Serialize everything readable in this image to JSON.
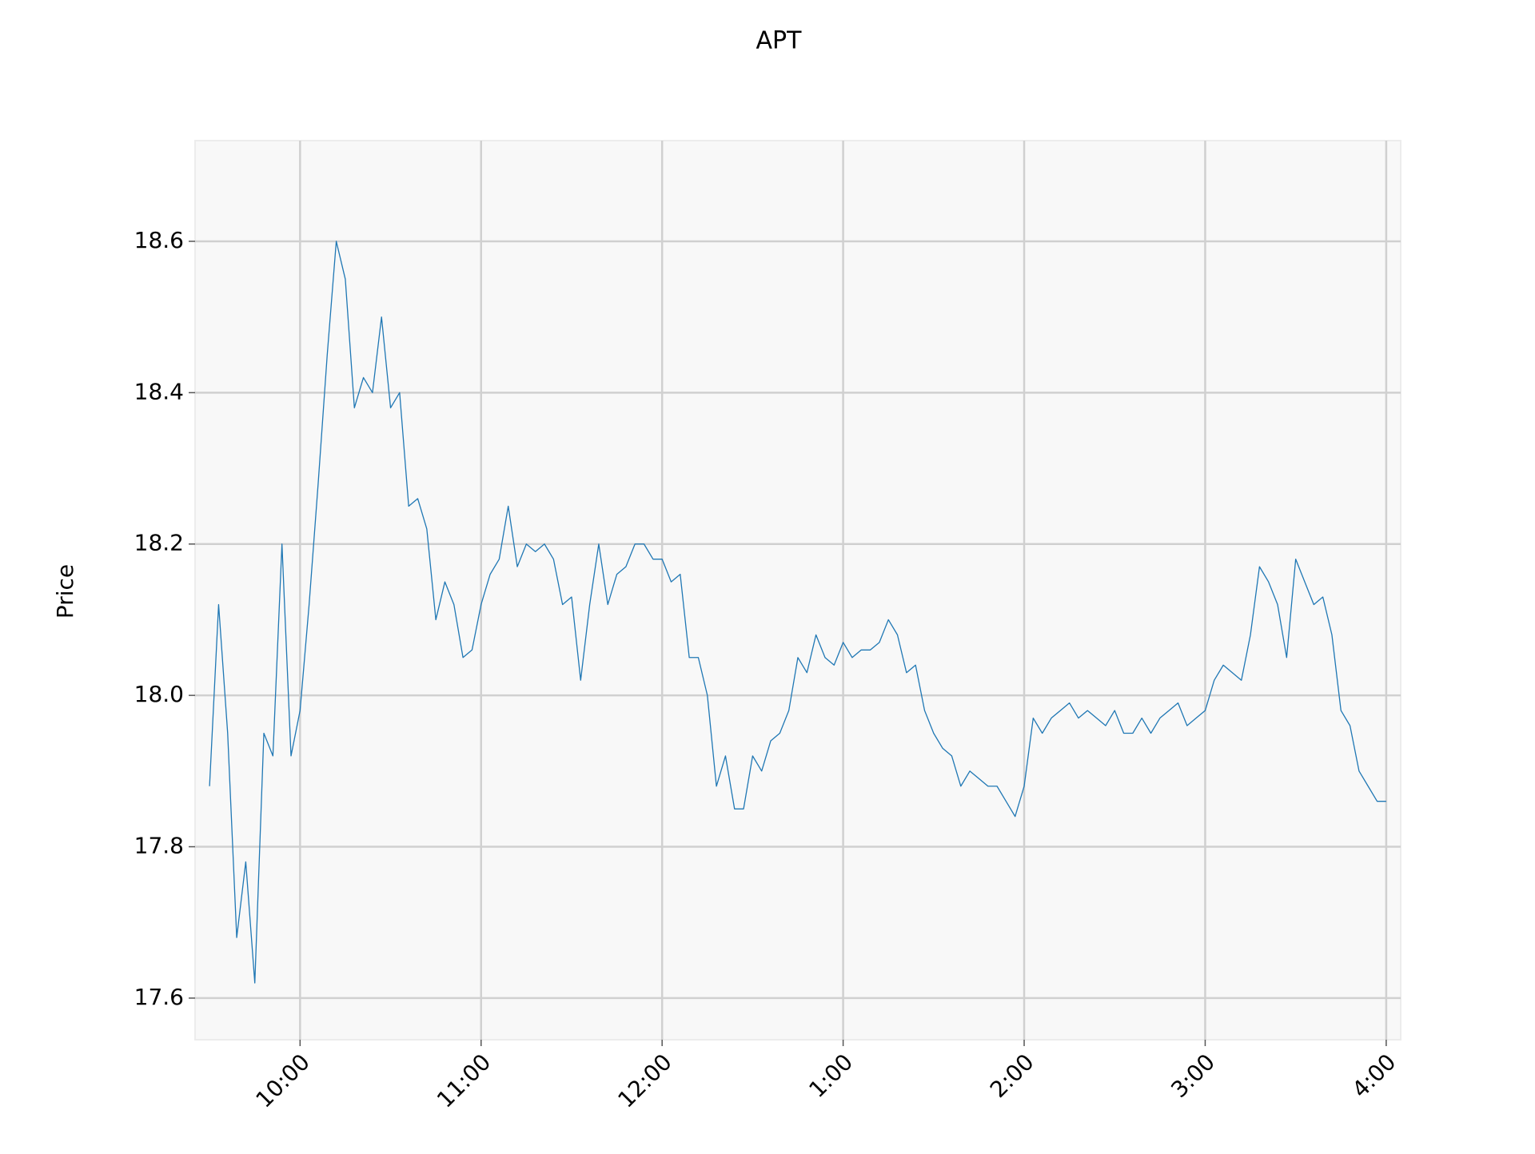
{
  "chart_data": {
    "type": "line",
    "title": "APT",
    "y_label": "Price",
    "x": [
      9.5,
      9.55,
      9.6,
      9.65,
      9.7,
      9.75,
      9.8,
      9.85,
      9.9,
      9.95,
      10,
      10.05,
      10.1,
      10.15,
      10.2,
      10.25,
      10.3,
      10.35,
      10.4,
      10.45,
      10.5,
      10.55,
      10.6,
      10.65,
      10.7,
      10.75,
      10.8,
      10.85,
      10.9,
      10.95,
      11,
      11.05,
      11.1,
      11.15,
      11.2,
      11.25,
      11.3,
      11.35,
      11.4,
      11.45,
      11.5,
      11.55,
      11.6,
      11.65,
      11.7,
      11.75,
      11.8,
      11.85,
      11.9,
      11.95,
      12,
      12.05,
      12.1,
      12.15,
      12.2,
      12.25,
      12.3,
      12.35,
      12.4,
      12.45,
      12.5,
      12.55,
      12.6,
      12.65,
      12.7,
      12.75,
      12.8,
      12.85,
      12.9,
      12.95,
      13,
      13.05,
      13.1,
      13.15,
      13.2,
      13.25,
      13.3,
      13.35,
      13.4,
      13.45,
      13.5,
      13.55,
      13.6,
      13.65,
      13.7,
      13.75,
      13.8,
      13.85,
      13.9,
      13.95,
      14,
      14.05,
      14.1,
      14.15,
      14.2,
      14.25,
      14.3,
      14.35,
      14.4,
      14.45,
      14.5,
      14.55,
      14.6,
      14.65,
      14.7,
      14.75,
      14.8,
      14.85,
      14.9,
      14.95,
      15,
      15.05,
      15.1,
      15.15,
      15.2,
      15.25,
      15.3,
      15.35,
      15.4,
      15.45,
      15.5,
      15.55,
      15.6,
      15.65,
      15.7,
      15.75,
      15.8,
      15.85,
      15.9,
      15.95,
      16
    ],
    "series": [
      {
        "color": "#1f77b4",
        "values": [
          17.88,
          18.12,
          17.95,
          17.68,
          17.78,
          17.62,
          17.95,
          17.92,
          18.2,
          17.92,
          17.98,
          18.12,
          18.28,
          18.45,
          18.6,
          18.55,
          18.38,
          18.42,
          18.4,
          18.5,
          18.38,
          18.4,
          18.25,
          18.26,
          18.22,
          18.1,
          18.15,
          18.12,
          18.05,
          18.06,
          18.12,
          18.16,
          18.18,
          18.25,
          18.17,
          18.2,
          18.19,
          18.2,
          18.18,
          18.12,
          18.13,
          18.02,
          18.12,
          18.2,
          18.12,
          18.16,
          18.17,
          18.2,
          18.2,
          18.18,
          18.18,
          18.15,
          18.16,
          18.05,
          18.05,
          18.0,
          17.88,
          17.92,
          17.85,
          17.85,
          17.92,
          17.9,
          17.94,
          17.95,
          17.98,
          18.05,
          18.03,
          18.08,
          18.05,
          18.04,
          18.07,
          18.05,
          18.06,
          18.06,
          18.07,
          18.1,
          18.08,
          18.03,
          18.04,
          17.98,
          17.95,
          17.93,
          17.92,
          17.88,
          17.9,
          17.89,
          17.88,
          17.88,
          17.86,
          17.84,
          17.88,
          17.97,
          17.95,
          17.97,
          17.98,
          17.99,
          17.97,
          17.98,
          17.97,
          17.96,
          17.98,
          17.95,
          17.95,
          17.97,
          17.95,
          17.97,
          17.98,
          17.99,
          17.96,
          17.97,
          17.98,
          18.02,
          18.04,
          18.03,
          18.02,
          18.08,
          18.17,
          18.15,
          18.12,
          18.05,
          18.18,
          18.15,
          18.12,
          18.13,
          18.08,
          17.98,
          17.96,
          17.9,
          17.88,
          17.86,
          17.86
        ]
      }
    ],
    "xlim": [
      9.42,
      16.08
    ],
    "xticks": [
      {
        "value": 10,
        "label": "10:00"
      },
      {
        "value": 11,
        "label": "11:00"
      },
      {
        "value": 12,
        "label": "12:00"
      },
      {
        "value": 13,
        "label": "1:00"
      },
      {
        "value": 14,
        "label": "2:00"
      },
      {
        "value": 15,
        "label": "3:00"
      },
      {
        "value": 16,
        "label": "4:00"
      }
    ],
    "ylim": [
      17.545,
      18.733
    ],
    "yticks": [
      {
        "value": 17.6,
        "label": "17.6"
      },
      {
        "value": 17.8,
        "label": "17.8"
      },
      {
        "value": 18,
        "label": "18.0"
      },
      {
        "value": 18.2,
        "label": "18.2"
      },
      {
        "value": 18.4,
        "label": "18.4"
      },
      {
        "value": 18.6,
        "label": "18.6"
      }
    ],
    "grid": true
  }
}
